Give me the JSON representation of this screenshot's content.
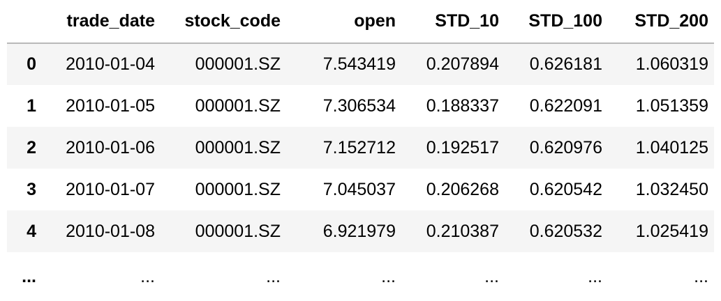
{
  "table": {
    "columns": [
      "trade_date",
      "stock_code",
      "open",
      "STD_10",
      "STD_100",
      "STD_200"
    ],
    "rows": [
      {
        "index": "0",
        "cells": [
          "2010-01-04",
          "000001.SZ",
          "7.543419",
          "0.207894",
          "0.626181",
          "1.060319"
        ]
      },
      {
        "index": "1",
        "cells": [
          "2010-01-05",
          "000001.SZ",
          "7.306534",
          "0.188337",
          "0.622091",
          "1.051359"
        ]
      },
      {
        "index": "2",
        "cells": [
          "2010-01-06",
          "000001.SZ",
          "7.152712",
          "0.192517",
          "0.620976",
          "1.040125"
        ]
      },
      {
        "index": "3",
        "cells": [
          "2010-01-07",
          "000001.SZ",
          "7.045037",
          "0.206268",
          "0.620542",
          "1.032450"
        ]
      },
      {
        "index": "4",
        "cells": [
          "2010-01-08",
          "000001.SZ",
          "6.921979",
          "0.210387",
          "0.620532",
          "1.025419"
        ]
      },
      {
        "index": "...",
        "cells": [
          "...",
          "...",
          "...",
          "...",
          "...",
          "..."
        ]
      }
    ]
  },
  "colors": {
    "stripe": "#f5f5f5",
    "header_border": "#b9b9b9",
    "text": "#000000"
  }
}
